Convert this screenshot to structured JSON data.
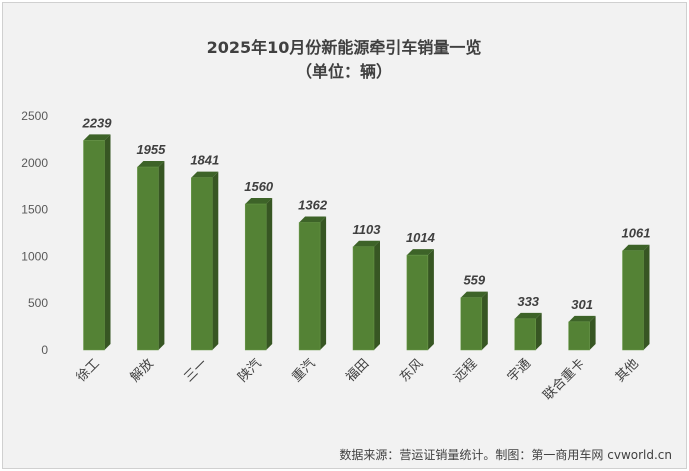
{
  "chart_data": {
    "type": "bar",
    "title": "2025年10月份新能源牵引车销量一览",
    "subtitle": "（单位：辆）",
    "categories": [
      "徐工",
      "解放",
      "三一",
      "陕汽",
      "重汽",
      "福田",
      "东风",
      "远程",
      "宇通",
      "联合重卡",
      "其他"
    ],
    "values": [
      2239,
      1955,
      1841,
      1560,
      1362,
      1103,
      1014,
      559,
      333,
      301,
      1061
    ],
    "ylim": [
      0,
      2500
    ],
    "yticks": [
      0,
      500,
      1000,
      1500,
      2000,
      2500
    ],
    "xlabel": "",
    "ylabel": "",
    "grid": false,
    "colors": {
      "front": "#548235",
      "side": "#375623",
      "top": "#3d6328"
    }
  },
  "source": "数据来源：营运证销量统计。制图：第一商用车网 cvworld.cn"
}
